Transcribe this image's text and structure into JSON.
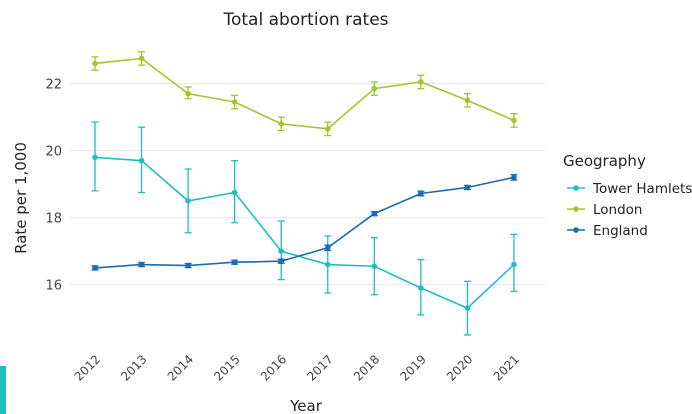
{
  "chart_data": {
    "type": "line",
    "title": "Total abortion rates",
    "xlabel": "Year",
    "ylabel": "Rate per 1,000",
    "x": [
      "2012",
      "2013",
      "2014",
      "2015",
      "2016",
      "2017",
      "2018",
      "2019",
      "2020",
      "2021"
    ],
    "ylim": [
      14.2,
      23.3
    ],
    "yticks": [
      16,
      18,
      20,
      22
    ],
    "grid": true,
    "legend_title": "Geography",
    "legend_position": "right",
    "series": [
      {
        "name": "Tower Hamlets",
        "color": "#1fbfbf",
        "values": [
          19.8,
          19.7,
          18.5,
          18.75,
          17.0,
          16.6,
          16.55,
          15.9,
          15.3,
          16.6
        ],
        "lower": [
          18.8,
          18.75,
          17.55,
          17.85,
          16.15,
          15.75,
          15.7,
          15.1,
          14.5,
          15.8
        ],
        "upper": [
          20.85,
          20.7,
          19.45,
          19.7,
          17.9,
          17.45,
          17.4,
          16.75,
          16.1,
          17.5
        ]
      },
      {
        "name": "London",
        "color": "#a2c62c",
        "values": [
          22.6,
          22.75,
          21.7,
          21.45,
          20.8,
          20.65,
          21.85,
          22.05,
          21.5,
          20.9
        ],
        "lower": [
          22.4,
          22.55,
          21.55,
          21.25,
          20.6,
          20.45,
          21.65,
          21.85,
          21.3,
          20.7
        ],
        "upper": [
          22.8,
          22.95,
          21.9,
          21.65,
          21.0,
          20.85,
          22.05,
          22.25,
          21.7,
          21.1
        ]
      },
      {
        "name": "England",
        "color": "#1a6bb0",
        "values": [
          16.5,
          16.6,
          16.57,
          16.67,
          16.7,
          17.1,
          18.12,
          18.72,
          18.9,
          19.2
        ],
        "lower": [
          16.44,
          16.54,
          16.51,
          16.61,
          16.64,
          17.02,
          18.06,
          18.65,
          18.84,
          19.12
        ],
        "upper": [
          16.56,
          16.66,
          16.63,
          16.73,
          16.76,
          17.18,
          18.18,
          18.79,
          18.96,
          19.28
        ]
      }
    ]
  }
}
